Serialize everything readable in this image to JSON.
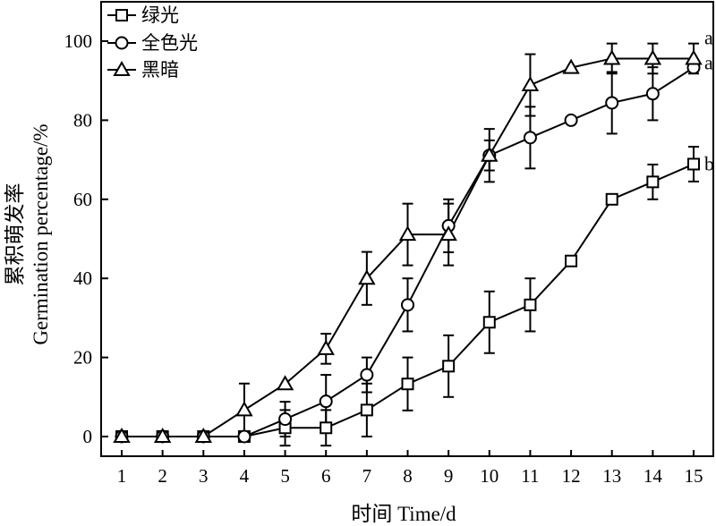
{
  "chart_data": {
    "type": "line",
    "xlabel": "时间 Time/d",
    "ylabel_cn": "累积萌发率",
    "ylabel_en": "Germination percentage/%",
    "x": [
      1,
      2,
      3,
      4,
      5,
      6,
      7,
      8,
      9,
      10,
      11,
      12,
      13,
      14,
      15
    ],
    "xlim": [
      1,
      15
    ],
    "ylim": [
      0,
      110
    ],
    "yticks": [
      0,
      20,
      40,
      60,
      80,
      100
    ],
    "grid": false,
    "legend_position": "top-left",
    "series": [
      {
        "name": "绿光",
        "marker": "square",
        "values": [
          0,
          0,
          0,
          0,
          2.2,
          2.2,
          6.7,
          13.3,
          17.8,
          28.9,
          33.3,
          44.4,
          60,
          64.4,
          68.9
        ],
        "errors": [
          0,
          0,
          0,
          0,
          4.5,
          4.5,
          6.7,
          6.7,
          7.8,
          7.8,
          6.7,
          0,
          0,
          4.4,
          4.4
        ],
        "label_end": "b"
      },
      {
        "name": "全色光",
        "marker": "circle",
        "values": [
          0,
          0,
          0,
          0,
          4.4,
          8.9,
          15.6,
          33.3,
          53.3,
          71.1,
          75.6,
          80,
          84.4,
          86.7,
          93.3
        ],
        "errors": [
          0,
          0,
          0,
          0,
          4.4,
          6.7,
          4.4,
          6.7,
          6.7,
          6.7,
          7.8,
          0,
          7.8,
          6.7,
          0
        ],
        "label_end": "a"
      },
      {
        "name": "黑暗",
        "marker": "triangle",
        "values": [
          0,
          0,
          0,
          6.7,
          13.3,
          22.2,
          40,
          51.1,
          51.1,
          71.1,
          88.9,
          93.3,
          95.6,
          95.6,
          95.6
        ],
        "errors": [
          0,
          0,
          0,
          6.7,
          0,
          3.8,
          6.7,
          7.8,
          7.8,
          3.8,
          7.8,
          0,
          3.8,
          3.8,
          3.8
        ],
        "label_end": "a"
      }
    ]
  }
}
